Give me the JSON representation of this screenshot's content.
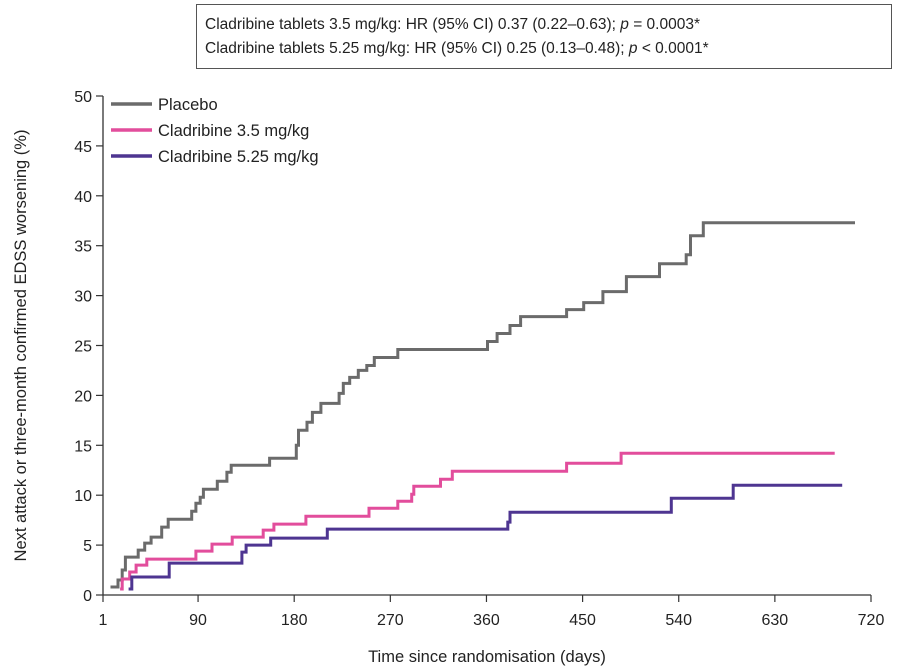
{
  "chart_data": {
    "type": "line",
    "step": true,
    "xlabel": "Time since randomisation (days)",
    "ylabel": "Next attack or three-month confirmed EDSS worsening (%)",
    "xlim": [
      1,
      720
    ],
    "ylim": [
      0,
      50
    ],
    "xticks": [
      1,
      90,
      180,
      270,
      360,
      450,
      540,
      630,
      720
    ],
    "yticks": [
      0,
      5,
      10,
      15,
      20,
      25,
      30,
      35,
      40,
      45,
      50
    ],
    "grid": false,
    "legend_position": "top-left",
    "annotations": [
      {
        "text": "Cladribine tablets 3.5 mg/kg: HR (95% CI) 0.37 (0.22–0.63); ",
        "p_label": "p",
        "p_value": " = 0.0003*"
      },
      {
        "text": "Cladribine tablets 5.25 mg/kg: HR (95% CI) 0.25 (0.13–0.48); ",
        "p_label": "p",
        "p_value": " < 0.0001*"
      }
    ],
    "series": [
      {
        "name": "Placebo",
        "color": "#6b6b6b",
        "points": [
          [
            8,
            0.8
          ],
          [
            15,
            0.8
          ],
          [
            15,
            1.5
          ],
          [
            19,
            1.5
          ],
          [
            19,
            2.5
          ],
          [
            22,
            2.5
          ],
          [
            22,
            3.8
          ],
          [
            34,
            3.8
          ],
          [
            34,
            4.5
          ],
          [
            40,
            4.5
          ],
          [
            40,
            5.2
          ],
          [
            46,
            5.2
          ],
          [
            46,
            5.8
          ],
          [
            56,
            5.8
          ],
          [
            56,
            6.8
          ],
          [
            62,
            6.8
          ],
          [
            62,
            7.6
          ],
          [
            84,
            7.6
          ],
          [
            84,
            8.4
          ],
          [
            88,
            8.4
          ],
          [
            88,
            9.2
          ],
          [
            92,
            9.2
          ],
          [
            92,
            9.8
          ],
          [
            95,
            9.8
          ],
          [
            95,
            10.6
          ],
          [
            108,
            10.6
          ],
          [
            108,
            11.4
          ],
          [
            117,
            11.4
          ],
          [
            117,
            12.3
          ],
          [
            121,
            12.3
          ],
          [
            121,
            13.0
          ],
          [
            157,
            13.0
          ],
          [
            157,
            13.7
          ],
          [
            182,
            13.7
          ],
          [
            182,
            15.0
          ],
          [
            184,
            15.0
          ],
          [
            184,
            16.5
          ],
          [
            192,
            16.5
          ],
          [
            192,
            17.3
          ],
          [
            197,
            17.3
          ],
          [
            197,
            18.3
          ],
          [
            205,
            18.3
          ],
          [
            205,
            19.2
          ],
          [
            222,
            19.2
          ],
          [
            222,
            20.2
          ],
          [
            226,
            20.2
          ],
          [
            226,
            21.2
          ],
          [
            232,
            21.2
          ],
          [
            232,
            21.8
          ],
          [
            240,
            21.8
          ],
          [
            240,
            22.5
          ],
          [
            248,
            22.5
          ],
          [
            248,
            23.0
          ],
          [
            255,
            23.0
          ],
          [
            255,
            23.8
          ],
          [
            277,
            23.8
          ],
          [
            277,
            24.6
          ],
          [
            361,
            24.6
          ],
          [
            361,
            25.4
          ],
          [
            370,
            25.4
          ],
          [
            370,
            26.2
          ],
          [
            382,
            26.2
          ],
          [
            382,
            27.0
          ],
          [
            392,
            27.0
          ],
          [
            392,
            27.9
          ],
          [
            435,
            27.9
          ],
          [
            435,
            28.6
          ],
          [
            451,
            28.6
          ],
          [
            451,
            29.3
          ],
          [
            469,
            29.3
          ],
          [
            469,
            30.4
          ],
          [
            491,
            30.4
          ],
          [
            491,
            31.9
          ],
          [
            522,
            31.9
          ],
          [
            522,
            33.2
          ],
          [
            547,
            33.2
          ],
          [
            547,
            34.1
          ],
          [
            551,
            34.1
          ],
          [
            551,
            36.0
          ],
          [
            563,
            36.0
          ],
          [
            563,
            37.3
          ],
          [
            705,
            37.3
          ]
        ]
      },
      {
        "name": "Cladribine 3.5 mg/kg",
        "color": "#e24d9c",
        "points": [
          [
            17,
            0.6
          ],
          [
            19,
            0.6
          ],
          [
            19,
            1.6
          ],
          [
            26,
            1.6
          ],
          [
            26,
            2.3
          ],
          [
            32,
            2.3
          ],
          [
            32,
            3.0
          ],
          [
            42,
            3.0
          ],
          [
            42,
            3.6
          ],
          [
            88,
            3.6
          ],
          [
            88,
            4.4
          ],
          [
            103,
            4.4
          ],
          [
            103,
            5.1
          ],
          [
            122,
            5.1
          ],
          [
            122,
            5.8
          ],
          [
            151,
            5.8
          ],
          [
            151,
            6.5
          ],
          [
            161,
            6.5
          ],
          [
            161,
            7.1
          ],
          [
            191,
            7.1
          ],
          [
            191,
            7.9
          ],
          [
            250,
            7.9
          ],
          [
            250,
            8.7
          ],
          [
            277,
            8.7
          ],
          [
            277,
            9.4
          ],
          [
            290,
            9.4
          ],
          [
            290,
            10.1
          ],
          [
            292,
            10.1
          ],
          [
            292,
            10.9
          ],
          [
            317,
            10.9
          ],
          [
            317,
            11.6
          ],
          [
            328,
            11.6
          ],
          [
            328,
            12.4
          ],
          [
            435,
            12.4
          ],
          [
            435,
            13.2
          ],
          [
            486,
            13.2
          ],
          [
            486,
            14.2
          ],
          [
            686,
            14.2
          ]
        ]
      },
      {
        "name": "Cladribine 5.25 mg/kg",
        "color": "#4e3591",
        "points": [
          [
            25,
            0.6
          ],
          [
            28,
            0.6
          ],
          [
            28,
            1.8
          ],
          [
            63,
            1.8
          ],
          [
            63,
            3.2
          ],
          [
            131,
            3.2
          ],
          [
            131,
            4.3
          ],
          [
            135,
            4.3
          ],
          [
            135,
            5.0
          ],
          [
            158,
            5.0
          ],
          [
            158,
            5.7
          ],
          [
            211,
            5.7
          ],
          [
            211,
            6.6
          ],
          [
            380,
            6.6
          ],
          [
            380,
            7.3
          ],
          [
            382,
            7.3
          ],
          [
            382,
            8.3
          ],
          [
            533,
            8.3
          ],
          [
            533,
            9.7
          ],
          [
            591,
            9.7
          ],
          [
            591,
            11.0
          ],
          [
            693,
            11.0
          ]
        ]
      }
    ]
  }
}
